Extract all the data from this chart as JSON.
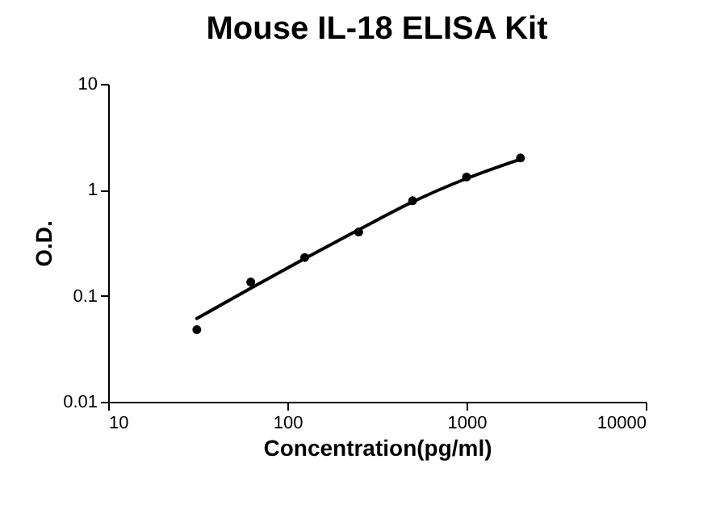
{
  "chart_data": {
    "type": "scatter",
    "title": "Mouse IL-18 ELISA Kit",
    "xlabel": "Concentration(pg/ml)",
    "ylabel": "O.D.",
    "log": "xy",
    "grid": false,
    "xlim": [
      10,
      10000
    ],
    "xticks": [
      10,
      100,
      1000,
      10000
    ],
    "ylim": [
      0.01,
      10
    ],
    "yticks": [
      0.01,
      0.1,
      1,
      10
    ],
    "series": [
      {
        "marker": "circle",
        "color": "#000000",
        "x": [
          31.25,
          62.5,
          125,
          250,
          500,
          1000,
          2000
        ],
        "values": [
          0.048,
          0.135,
          0.23,
          0.4,
          0.79,
          1.32,
          2.0
        ]
      },
      {
        "type": "line",
        "marker": "none",
        "color": "#000000",
        "x": [
          31.25,
          62.5,
          125,
          250,
          500,
          1000,
          2000
        ],
        "values": [
          0.061,
          0.118,
          0.225,
          0.42,
          0.77,
          1.28,
          1.95
        ]
      }
    ]
  }
}
